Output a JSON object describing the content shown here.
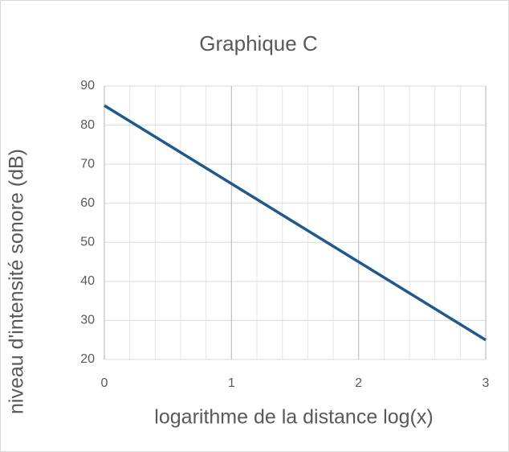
{
  "chart_data": {
    "type": "line",
    "title": "Graphique C",
    "x_label": "logarithme de la distance log(x)",
    "y_label": "niveau d'intensité sonore (dB)",
    "x": [
      0,
      3
    ],
    "series": [
      {
        "name": "Graphique C",
        "color": "#1f5a8e",
        "values": [
          85,
          25
        ]
      }
    ],
    "xlim": [
      0,
      3
    ],
    "xticks": [
      0,
      1,
      2,
      3
    ],
    "x_minor_ticks": [
      0.2,
      0.4,
      0.6,
      0.8,
      1.2,
      1.4,
      1.6,
      1.8,
      2.2,
      2.4,
      2.6,
      2.8
    ],
    "ylim": [
      20,
      90
    ],
    "yticks": [
      20,
      30,
      40,
      50,
      60,
      70,
      80,
      90
    ],
    "grid": true
  }
}
